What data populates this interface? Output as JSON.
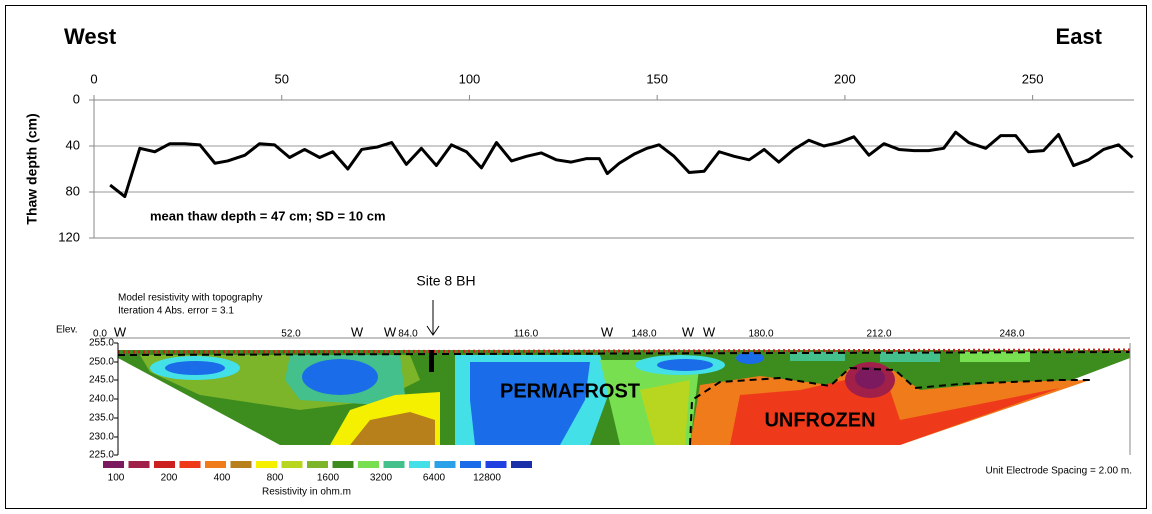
{
  "chart_data": {
    "type": "line",
    "title_left": "West",
    "title_right": "East",
    "y_label": "Thaw depth (cm)",
    "annotation": "mean thaw depth = 47 cm; SD = 10 cm",
    "xlim": [
      0,
      277
    ],
    "xticks": [
      0,
      50,
      100,
      150,
      200,
      250
    ],
    "ylim": [
      0,
      120
    ],
    "yticks": [
      0,
      40,
      80,
      120
    ],
    "y_inverted": true,
    "grid": true,
    "series": [
      {
        "name": "Thaw depth",
        "color": "#000000",
        "x": [
          4.3,
          8.2,
          12.2,
          16.2,
          20.2,
          24.2,
          28.2,
          32.2,
          35.6,
          40.2,
          44.1,
          48.1,
          52.1,
          56.1,
          60.1,
          63.6,
          67.6,
          71.3,
          75.3,
          79.3,
          83.2,
          87.2,
          91.2,
          95.2,
          99.2,
          103.2,
          107.2,
          111.2,
          115.2,
          119.1,
          123.1,
          127.1,
          131.1,
          134.6,
          136.7,
          139.9,
          143.9,
          147.3,
          150.5,
          154.5,
          158.5,
          162.5,
          166.5,
          170.5,
          174.5,
          178.5,
          182.4,
          186.4,
          190.4,
          194.4,
          198.4,
          202.4,
          206.4,
          210.4,
          214.4,
          218.4,
          222.3,
          226.3,
          229.5,
          233.0,
          237.5,
          241.5,
          245.5,
          248.9,
          252.9,
          256.9,
          260.9,
          264.9,
          268.9,
          272.9,
          276.6
        ],
        "values": [
          74,
          84,
          42,
          45,
          38,
          38,
          39,
          55,
          53,
          48,
          38,
          39,
          50,
          43,
          50,
          45,
          60,
          43,
          41,
          37,
          56,
          42,
          57,
          39,
          45,
          59,
          37,
          53,
          49,
          46,
          52,
          54,
          51,
          51,
          64,
          55,
          47,
          42,
          39,
          49,
          63,
          62,
          45,
          49,
          52,
          43,
          54,
          43,
          35,
          40,
          37,
          32,
          48,
          38,
          43,
          44,
          44,
          42,
          28,
          37,
          42,
          31,
          31,
          45,
          44,
          30,
          57,
          52,
          43,
          39,
          50
        ]
      }
    ]
  },
  "section": {
    "heading": [
      "Model resistivity with topography",
      "Iteration 4 Abs. error = 3.1"
    ],
    "elev_title": "Elev.",
    "elev_labels": [
      "255.0",
      "250.0",
      "245.0",
      "240.0",
      "235.0",
      "230.0",
      "225.0"
    ],
    "distance_labels": [
      "0.0",
      "52.0",
      "84.0",
      "116.0",
      "148.0",
      "180.0",
      "212.0",
      "248.0"
    ],
    "water_marks": [
      "W",
      "W",
      "W",
      "W",
      "W",
      "W"
    ],
    "site_label": "Site 8 BH",
    "zone_labels": [
      "PERMAFROST",
      "UNFROZEN"
    ],
    "colorbar_labels": [
      "100",
      "200",
      "400",
      "800",
      "1600",
      "3200",
      "6400",
      "12800"
    ],
    "colorbar_title": "Resistivity in ohm.m",
    "spacing_note": "Unit Electrode Spacing = 2.00 m."
  }
}
